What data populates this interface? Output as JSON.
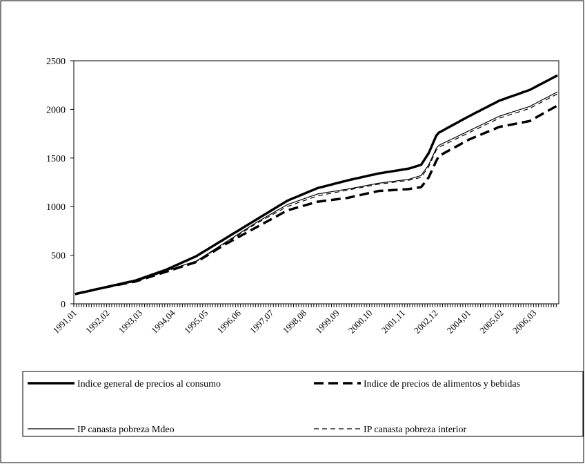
{
  "chart_data": {
    "type": "line",
    "categories": [
      "1991,01",
      null,
      null,
      null,
      null,
      null,
      null,
      null,
      null,
      null,
      null,
      null,
      null,
      "1992,02",
      null,
      null,
      null,
      null,
      null,
      null,
      null,
      null,
      null,
      null,
      null,
      null,
      "1993,03",
      null,
      null,
      null,
      null,
      null,
      null,
      null,
      null,
      null,
      null,
      null,
      null,
      "1994,04",
      null,
      null,
      null,
      null,
      null,
      null,
      null,
      null,
      null,
      null,
      null,
      null,
      "1995,05",
      null,
      null,
      null,
      null,
      null,
      null,
      null,
      null,
      null,
      null,
      null,
      null,
      "1996,06",
      null,
      null,
      null,
      null,
      null,
      null,
      null,
      null,
      null,
      null,
      null,
      null,
      "1997,07",
      null,
      null,
      null,
      null,
      null,
      null,
      null,
      null,
      null,
      null,
      null,
      null,
      "1998,08",
      null,
      null,
      null,
      null,
      null,
      null,
      null,
      null,
      null,
      null,
      null,
      null,
      "1999,09",
      null,
      null,
      null,
      null,
      null,
      null,
      null,
      null,
      null,
      null,
      null,
      null,
      "2000,10",
      null,
      null,
      null,
      null,
      null,
      null,
      null,
      null,
      null,
      null,
      null,
      null,
      "2001,11",
      null,
      null,
      null,
      null,
      null,
      null,
      null,
      null,
      null,
      null,
      null,
      null,
      "2002,12",
      null,
      null,
      null,
      null,
      null,
      null,
      null,
      null,
      null,
      null,
      null,
      null,
      "2004,01",
      null,
      null,
      null,
      null,
      null,
      null,
      null,
      null,
      null,
      null,
      null,
      null,
      "2005,02",
      null,
      null,
      null,
      null,
      null,
      null,
      null,
      null,
      null,
      null,
      null,
      null,
      "2006,03",
      null,
      null,
      null,
      null,
      null,
      null,
      null,
      null,
      null
    ],
    "series": [
      {
        "name": "Indice general de precios al consumo",
        "color": "#000000",
        "width": "thick",
        "dash": "solid",
        "values": [
          100,
          106,
          112,
          118,
          123,
          129,
          135,
          141,
          147,
          153,
          158,
          164,
          170,
          176,
          182,
          188,
          193,
          199,
          205,
          211,
          217,
          223,
          228,
          234,
          240,
          249,
          258,
          268,
          277,
          286,
          295,
          304,
          313,
          323,
          332,
          341,
          350,
          362,
          373,
          385,
          397,
          408,
          420,
          432,
          443,
          455,
          467,
          478,
          490,
          506,
          522,
          538,
          553,
          569,
          585,
          601,
          617,
          633,
          648,
          664,
          680,
          696,
          712,
          728,
          743,
          759,
          775,
          791,
          807,
          823,
          838,
          854,
          870,
          886,
          902,
          918,
          933,
          949,
          965,
          981,
          997,
          1013,
          1028,
          1044,
          1060,
          1071,
          1082,
          1093,
          1103,
          1114,
          1125,
          1136,
          1147,
          1158,
          1168,
          1179,
          1190,
          1197,
          1203,
          1210,
          1217,
          1223,
          1230,
          1237,
          1243,
          1250,
          1257,
          1263,
          1270,
          1276,
          1282,
          1288,
          1293,
          1299,
          1305,
          1311,
          1317,
          1323,
          1328,
          1334,
          1340,
          1344,
          1348,
          1353,
          1357,
          1361,
          1365,
          1369,
          1373,
          1378,
          1382,
          1386,
          1390,
          1398,
          1406,
          1414,
          1422,
          1430,
          1470,
          1510,
          1550,
          1610,
          1670,
          1730,
          1760,
          1774,
          1788,
          1803,
          1817,
          1831,
          1845,
          1859,
          1873,
          1888,
          1902,
          1916,
          1930,
          1943,
          1957,
          1970,
          1983,
          1997,
          2010,
          2023,
          2037,
          2050,
          2063,
          2077,
          2090,
          2099,
          2108,
          2118,
          2127,
          2136,
          2145,
          2154,
          2163,
          2173,
          2182,
          2191,
          2200,
          2214,
          2227,
          2241,
          2255,
          2268,
          2282,
          2295,
          2309,
          2323,
          2336,
          2350
        ]
      },
      {
        "name": "Indice de precios de alimentos y bebidas",
        "color": "#000000",
        "width": "thick",
        "dash": "dashed",
        "values": [
          100,
          106,
          112,
          118,
          123,
          129,
          135,
          141,
          147,
          153,
          158,
          164,
          170,
          175,
          180,
          185,
          190,
          195,
          200,
          205,
          210,
          215,
          220,
          225,
          230,
          238,
          247,
          255,
          263,
          272,
          280,
          288,
          297,
          305,
          313,
          322,
          330,
          338,
          347,
          355,
          363,
          372,
          380,
          388,
          397,
          405,
          413,
          422,
          430,
          446,
          462,
          478,
          493,
          509,
          525,
          541,
          557,
          573,
          588,
          604,
          620,
          634,
          648,
          663,
          677,
          691,
          705,
          719,
          733,
          748,
          762,
          776,
          790,
          804,
          818,
          833,
          847,
          861,
          875,
          889,
          903,
          918,
          932,
          946,
          960,
          968,
          975,
          983,
          990,
          998,
          1005,
          1013,
          1020,
          1028,
          1035,
          1043,
          1050,
          1053,
          1057,
          1060,
          1063,
          1067,
          1070,
          1073,
          1077,
          1080,
          1083,
          1087,
          1090,
          1096,
          1102,
          1108,
          1113,
          1119,
          1125,
          1131,
          1137,
          1143,
          1148,
          1154,
          1160,
          1162,
          1163,
          1165,
          1167,
          1168,
          1170,
          1172,
          1173,
          1175,
          1177,
          1178,
          1180,
          1184,
          1188,
          1192,
          1196,
          1200,
          1233,
          1267,
          1300,
          1357,
          1413,
          1470,
          1520,
          1534,
          1548,
          1563,
          1577,
          1591,
          1605,
          1619,
          1633,
          1648,
          1662,
          1676,
          1690,
          1701,
          1712,
          1723,
          1733,
          1744,
          1755,
          1766,
          1777,
          1788,
          1798,
          1809,
          1820,
          1825,
          1830,
          1835,
          1840,
          1845,
          1850,
          1855,
          1860,
          1865,
          1870,
          1875,
          1880,
          1895,
          1909,
          1924,
          1938,
          1953,
          1967,
          1982,
          1996,
          2011,
          2025,
          2040
        ]
      },
      {
        "name": "IP canasta pobreza Mdeo",
        "color": "#000000",
        "width": "thin",
        "dash": "solid",
        "values": [
          100,
          106,
          112,
          118,
          123,
          129,
          135,
          141,
          147,
          153,
          158,
          164,
          170,
          175,
          180,
          185,
          190,
          195,
          200,
          205,
          210,
          215,
          220,
          225,
          230,
          239,
          248,
          258,
          267,
          276,
          285,
          294,
          303,
          313,
          322,
          331,
          340,
          348,
          357,
          365,
          373,
          382,
          390,
          398,
          407,
          415,
          423,
          432,
          440,
          457,
          473,
          490,
          507,
          523,
          540,
          557,
          573,
          590,
          607,
          623,
          640,
          657,
          673,
          690,
          707,
          723,
          740,
          757,
          773,
          790,
          807,
          823,
          840,
          855,
          870,
          885,
          900,
          915,
          930,
          945,
          960,
          975,
          990,
          1005,
          1020,
          1029,
          1038,
          1048,
          1057,
          1066,
          1075,
          1084,
          1093,
          1103,
          1112,
          1121,
          1130,
          1134,
          1138,
          1143,
          1147,
          1151,
          1155,
          1159,
          1163,
          1168,
          1172,
          1176,
          1180,
          1185,
          1190,
          1195,
          1200,
          1205,
          1210,
          1215,
          1220,
          1225,
          1230,
          1235,
          1240,
          1243,
          1247,
          1250,
          1253,
          1257,
          1260,
          1263,
          1267,
          1270,
          1273,
          1277,
          1280,
          1288,
          1296,
          1304,
          1312,
          1320,
          1357,
          1393,
          1430,
          1487,
          1543,
          1600,
          1630,
          1643,
          1655,
          1668,
          1680,
          1693,
          1705,
          1718,
          1730,
          1743,
          1755,
          1768,
          1780,
          1793,
          1805,
          1818,
          1830,
          1843,
          1855,
          1868,
          1880,
          1893,
          1905,
          1918,
          1930,
          1938,
          1947,
          1955,
          1963,
          1972,
          1980,
          1988,
          1997,
          2005,
          2013,
          2022,
          2030,
          2044,
          2057,
          2071,
          2085,
          2098,
          2112,
          2125,
          2139,
          2153,
          2166,
          2180
        ]
      },
      {
        "name": "IP canasta pobreza interior",
        "color": "#000000",
        "width": "thin",
        "dash": "dashed",
        "values": [
          100,
          106,
          112,
          118,
          123,
          129,
          135,
          141,
          147,
          153,
          158,
          164,
          170,
          175,
          180,
          185,
          190,
          195,
          200,
          205,
          210,
          215,
          220,
          225,
          230,
          239,
          248,
          256,
          265,
          274,
          283,
          291,
          300,
          309,
          318,
          326,
          335,
          343,
          352,
          360,
          368,
          377,
          385,
          393,
          402,
          410,
          418,
          427,
          435,
          451,
          468,
          484,
          500,
          516,
          533,
          549,
          565,
          581,
          598,
          614,
          630,
          647,
          663,
          680,
          697,
          713,
          730,
          747,
          763,
          780,
          797,
          813,
          830,
          844,
          858,
          873,
          887,
          901,
          915,
          929,
          943,
          958,
          972,
          986,
          1000,
          1009,
          1018,
          1028,
          1037,
          1046,
          1055,
          1064,
          1073,
          1083,
          1092,
          1101,
          1110,
          1115,
          1120,
          1125,
          1130,
          1135,
          1140,
          1145,
          1150,
          1155,
          1160,
          1165,
          1170,
          1175,
          1180,
          1185,
          1190,
          1195,
          1200,
          1205,
          1210,
          1215,
          1220,
          1225,
          1230,
          1233,
          1237,
          1240,
          1243,
          1247,
          1250,
          1253,
          1257,
          1260,
          1263,
          1267,
          1270,
          1276,
          1282,
          1288,
          1294,
          1300,
          1337,
          1373,
          1410,
          1467,
          1523,
          1580,
          1610,
          1623,
          1635,
          1648,
          1660,
          1673,
          1685,
          1698,
          1710,
          1723,
          1735,
          1748,
          1760,
          1773,
          1785,
          1798,
          1810,
          1823,
          1835,
          1848,
          1860,
          1873,
          1885,
          1898,
          1910,
          1918,
          1927,
          1935,
          1943,
          1952,
          1960,
          1968,
          1977,
          1985,
          1993,
          2002,
          2010,
          2024,
          2037,
          2051,
          2065,
          2078,
          2092,
          2105,
          2119,
          2133,
          2146,
          2160
        ]
      }
    ],
    "ylim": [
      0,
      2500
    ],
    "yticks": [
      0,
      500,
      1000,
      1500,
      2000,
      2500
    ],
    "grid": false,
    "legend": "bottom"
  }
}
